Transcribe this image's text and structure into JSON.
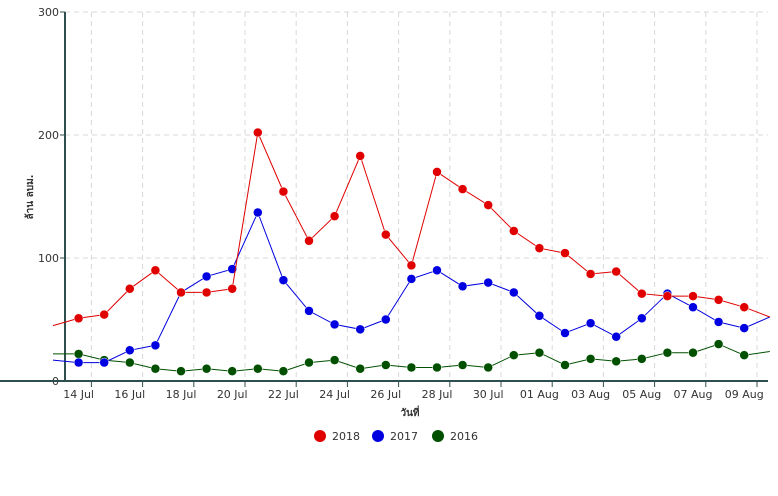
{
  "chart_data": {
    "type": "line",
    "title": "",
    "xlabel": "วันที่",
    "ylabel": "ล้าน ลบม.",
    "ylim": [
      0,
      300
    ],
    "yticks": [
      "0",
      "100",
      "200",
      "300"
    ],
    "xticks": [
      "14 Jul",
      "16 Jul",
      "18 Jul",
      "20 Jul",
      "22 Jul",
      "24 Jul",
      "26 Jul",
      "28 Jul",
      "30 Jul",
      "01 Aug",
      "03 Aug",
      "05 Aug",
      "07 Aug",
      "09 Aug"
    ],
    "x": [
      "13 Jul",
      "14 Jul",
      "15 Jul",
      "16 Jul",
      "17 Jul",
      "18 Jul",
      "19 Jul",
      "20 Jul",
      "21 Jul",
      "22 Jul",
      "23 Jul",
      "24 Jul",
      "25 Jul",
      "26 Jul",
      "27 Jul",
      "28 Jul",
      "29 Jul",
      "30 Jul",
      "31 Jul",
      "01 Aug",
      "02 Aug",
      "03 Aug",
      "04 Aug",
      "05 Aug",
      "06 Aug",
      "07 Aug",
      "08 Aug",
      "09 Aug",
      "10 Aug"
    ],
    "grid": true,
    "legend": "bottom-center",
    "series": [
      {
        "name": "2018",
        "color": "#e00000",
        "values": [
          45,
          51,
          54,
          75,
          90,
          72,
          72,
          75,
          202,
          154,
          114,
          134,
          183,
          119,
          94,
          170,
          156,
          143,
          122,
          108,
          104,
          87,
          89,
          71,
          69,
          69,
          66,
          60,
          52
        ]
      },
      {
        "name": "2017",
        "color": "#0000e0",
        "values": [
          17,
          15,
          15,
          25,
          29,
          72,
          85,
          91,
          137,
          82,
          57,
          46,
          42,
          50,
          83,
          90,
          77,
          80,
          72,
          53,
          39,
          47,
          36,
          51,
          71,
          60,
          48,
          43,
          52
        ]
      },
      {
        "name": "2016",
        "color": "#005000",
        "values": [
          22,
          22,
          17,
          15,
          10,
          8,
          10,
          8,
          10,
          8,
          15,
          17,
          10,
          13,
          11,
          11,
          13,
          11,
          21,
          23,
          13,
          18,
          16,
          18,
          23,
          23,
          30,
          21,
          24
        ]
      }
    ]
  }
}
